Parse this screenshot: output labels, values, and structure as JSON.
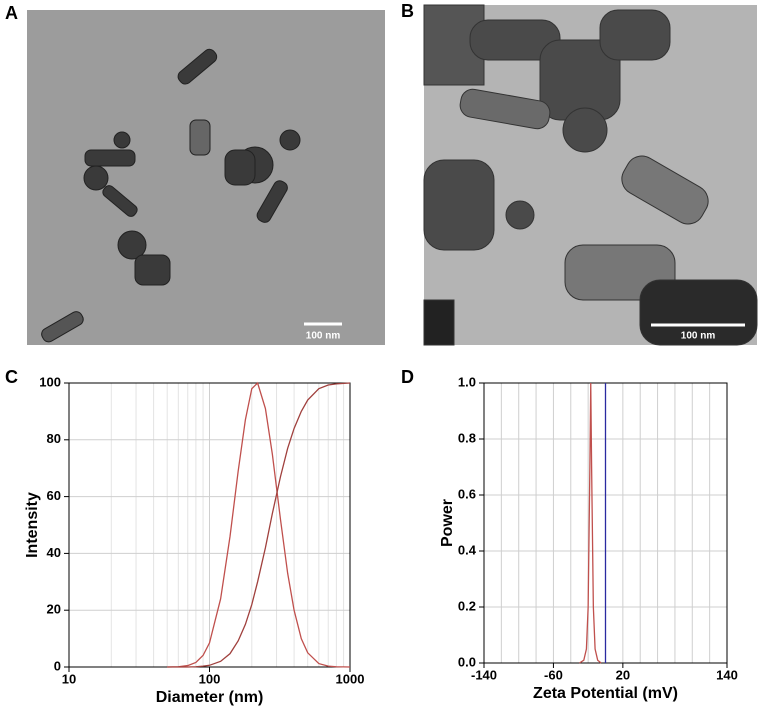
{
  "panels": [
    {
      "label": "A",
      "scale_bar": "100 nm"
    },
    {
      "label": "B",
      "scale_bar": "100 nm"
    }
  ],
  "chart_data": [
    {
      "type": "line",
      "label": "C",
      "xlabel": "Diameter (nm)",
      "ylabel": "Intensity",
      "xscale": "log",
      "grid": true,
      "xlim": [
        10,
        1000
      ],
      "xticks": [
        10,
        100,
        1000
      ],
      "ylim": [
        0,
        100
      ],
      "yticks": [
        0,
        20,
        40,
        60,
        80,
        100
      ],
      "x": [
        50,
        60,
        70,
        80,
        90,
        100,
        120,
        140,
        160,
        180,
        200,
        220,
        250,
        280,
        320,
        360,
        400,
        450,
        500,
        600,
        700,
        800,
        1000
      ],
      "series": [
        {
          "color": "#c0504d",
          "values": [
            0,
            0.1,
            0.5,
            1.6,
            4.1,
            8.5,
            24,
            46,
            69,
            87,
            98,
            100,
            91,
            75,
            52,
            33,
            20,
            10,
            5,
            1.2,
            0.3,
            0.1,
            0
          ]
        },
        {
          "color": "#a0403d",
          "values": [
            0,
            0,
            0,
            0.1,
            0.3,
            0.6,
            2,
            4.7,
            9.2,
            15,
            22,
            30,
            42,
            54,
            67,
            77,
            84,
            90,
            94,
            98,
            99.3,
            99.7,
            100
          ]
        }
      ]
    },
    {
      "type": "line",
      "label": "D",
      "xlabel": "Zeta Potential (mV)",
      "ylabel": "Power",
      "grid": true,
      "xlim": [
        -140,
        140
      ],
      "xticks": [
        -140,
        -60,
        20,
        140
      ],
      "x_minor_ticks": [
        -120,
        -100,
        -80,
        -40,
        -20,
        0,
        40,
        60,
        80,
        100,
        120
      ],
      "ylim": [
        0,
        1
      ],
      "yticks": [
        {
          "value": 0,
          "label": "0.0"
        },
        {
          "value": 0.2,
          "label": "0.2"
        },
        {
          "value": 0.4,
          "label": "0.4"
        },
        {
          "value": 0.6,
          "label": "0.6"
        },
        {
          "value": 0.8,
          "label": "0.8"
        },
        {
          "value": 1,
          "label": "1.0"
        }
      ],
      "series": [
        {
          "color": "#c0504d",
          "x": [
            -30,
            -25,
            -22,
            -20,
            -18,
            -17,
            -16,
            -14,
            -12,
            -9,
            -5
          ],
          "values": [
            0,
            0.01,
            0.05,
            0.2,
            0.7,
            1,
            0.7,
            0.2,
            0.05,
            0.01,
            0
          ]
        },
        {
          "color": "#2a2aa0",
          "x": [
            0,
            0
          ],
          "values": [
            0,
            1
          ]
        }
      ]
    }
  ]
}
